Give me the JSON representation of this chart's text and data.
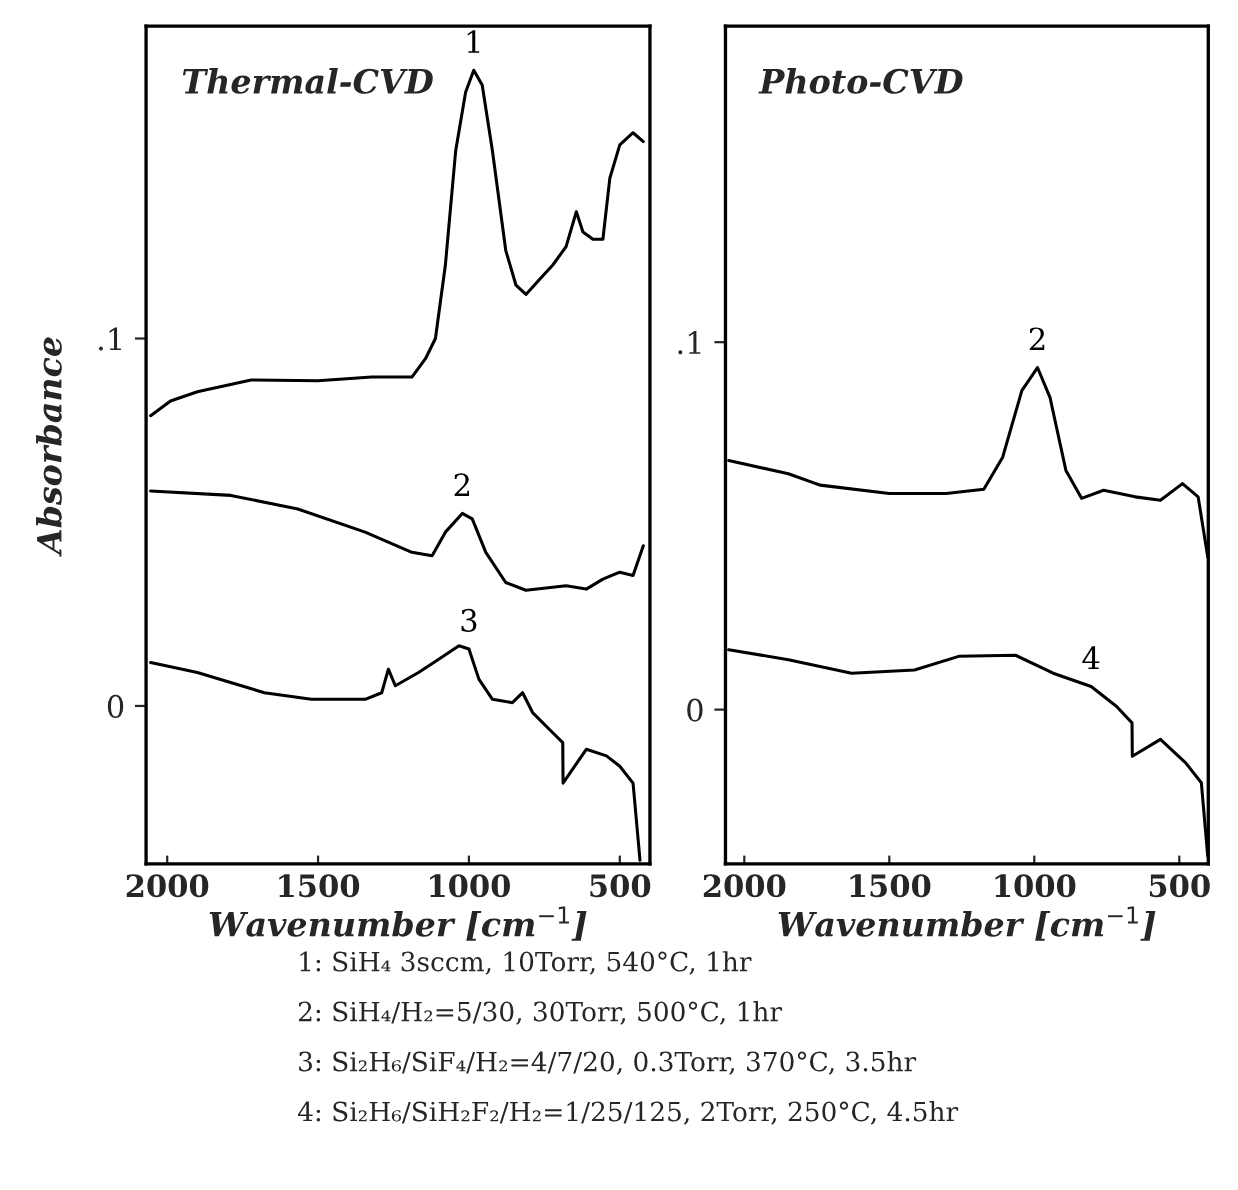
{
  "chart_data": [
    {
      "type": "line",
      "title": "Thermal-CVD",
      "xlabel": "Wavenumber [cm$^{−1}$]",
      "ylabel": "Absorbance",
      "xlim": [
        2070,
        400
      ],
      "ylim": [
        -0.043,
        0.185
      ],
      "xticks": [
        2000,
        1500,
        1000,
        500
      ],
      "yticks": [
        0,
        {
          "value": 0.1,
          "label": ".1"
        }
      ],
      "grid": false,
      "marker": "none",
      "line_style": "solid",
      "series": [
        {
          "name": "1",
          "color": "#000000",
          "x": [
            2055,
            1989,
            1900,
            1722,
            1500,
            1322,
            1189,
            1144,
            1111,
            1078,
            1044,
            1011,
            984,
            956,
            922,
            878,
            844,
            811,
            767,
            722,
            678,
            644,
            622,
            589,
            556,
            533,
            500,
            456,
            422
          ],
          "values": [
            0.079,
            0.083,
            0.0855,
            0.0887,
            0.0885,
            0.0895,
            0.0895,
            0.0945,
            0.1,
            0.12,
            0.151,
            0.167,
            0.173,
            0.169,
            0.151,
            0.124,
            0.1145,
            0.112,
            0.116,
            0.12,
            0.125,
            0.1345,
            0.129,
            0.127,
            0.127,
            0.1436,
            0.1527,
            0.156,
            0.1536
          ]
        },
        {
          "name": "2",
          "color": "#000000",
          "x": [
            2055,
            1789,
            1567,
            1344,
            1189,
            1122,
            1078,
            1022,
            989,
            944,
            878,
            811,
            678,
            611,
            556,
            500,
            456,
            422
          ],
          "values": [
            0.0585,
            0.0573,
            0.0536,
            0.0473,
            0.0418,
            0.0409,
            0.0473,
            0.0524,
            0.0509,
            0.0418,
            0.0336,
            0.0315,
            0.0327,
            0.0318,
            0.0345,
            0.0364,
            0.0355,
            0.0436
          ]
        },
        {
          "name": "3",
          "color": "#000000",
          "x": [
            2055,
            1900,
            1678,
            1522,
            1344,
            1289,
            1267,
            1244,
            1167,
            1100,
            1033,
            1000,
            967,
            922,
            856,
            822,
            789,
            722,
            689,
            688,
            611,
            544,
            500,
            456,
            433
          ],
          "values": [
            0.0118,
            0.0091,
            0.0036,
            0.0018,
            0.0018,
            0.0036,
            0.01,
            0.0055,
            0.0091,
            0.0127,
            0.0164,
            0.0155,
            0.0073,
            0.0018,
            0.0009,
            0.0036,
            -0.0018,
            -0.0073,
            -0.01,
            -0.021,
            -0.0118,
            -0.0136,
            -0.0164,
            -0.021,
            -0.042
          ]
        }
      ],
      "annotations": [
        "1: SiH₄ 3sccm, 10Torr, 540°C, 1hr",
        "2: SiH₄/H₂=5/30, 30Torr, 500°C, 1hr",
        "3: Si₂H₆/SiF₄/H₂=4/7/20, 0.3Torr, 370°C, 3.5hr",
        "4: Si₂H₆/SiH₂F₂/H₂=1/25/125, 2Torr, 250°C, 4.5hr"
      ]
    },
    {
      "type": "line",
      "title": "Photo-CVD",
      "xlabel": "Wavenumber [cm$^{−1}$]",
      "xlim": [
        2065,
        400
      ],
      "ylim": [
        -0.042,
        0.186
      ],
      "xticks": [
        2000,
        1500,
        1000,
        500
      ],
      "yticks": [
        0,
        {
          "value": 0.1,
          "label": ".1"
        }
      ],
      "grid": false,
      "marker": "none",
      "line_style": "solid",
      "series": [
        {
          "name": "2",
          "color": "#000000",
          "x": [
            2054,
            1848,
            1739,
            1500,
            1304,
            1174,
            1109,
            1043,
            989,
            946,
            891,
            837,
            761,
            652,
            565,
            489,
            435,
            402
          ],
          "values": [
            0.0678,
            0.0642,
            0.0611,
            0.0588,
            0.0588,
            0.06,
            0.0687,
            0.0868,
            0.0931,
            0.085,
            0.0651,
            0.0575,
            0.0597,
            0.0579,
            0.057,
            0.0615,
            0.0579,
            0.0416
          ]
        },
        {
          "name": "4",
          "color": "#000000",
          "x": [
            2054,
            1848,
            1630,
            1413,
            1261,
            1065,
            935,
            804,
            717,
            663,
            662,
            565,
            478,
            424,
            402
          ],
          "values": [
            0.0163,
            0.0136,
            0.0099,
            0.0108,
            0.0145,
            0.0148,
            0.0099,
            0.0063,
            0.0009,
            -0.0036,
            -0.0127,
            -0.0081,
            -0.0145,
            -0.0199,
            -0.0398
          ]
        }
      ]
    }
  ]
}
